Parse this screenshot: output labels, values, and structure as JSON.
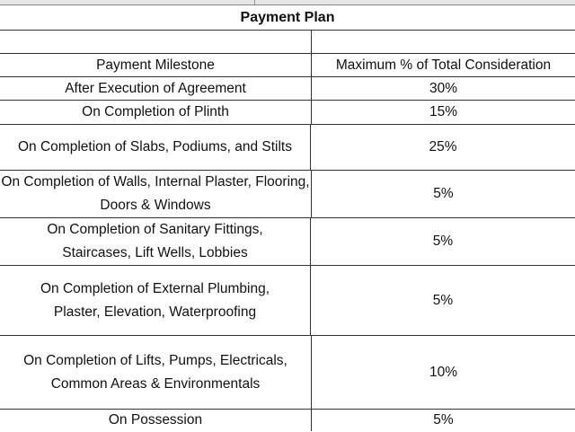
{
  "title": "Payment Plan",
  "headers": {
    "milestone": "Payment Milestone",
    "percent": "Maximum % of Total Consideration"
  },
  "rows": [
    {
      "milestone": "After Execution of Agreement",
      "percent": "30%"
    },
    {
      "milestone": "On Completion of Plinth",
      "percent": "15%"
    },
    {
      "milestone": "On Completion of Slabs, Podiums, and Stilts",
      "percent": "25%"
    },
    {
      "milestone": "On Completion of Walls, Internal Plaster, Flooring, Doors & Windows",
      "percent": "5%"
    },
    {
      "milestone": "On Completion of Sanitary Fittings, Staircases, Lift Wells, Lobbies",
      "percent": "5%"
    },
    {
      "milestone": "On Completion of External Plumbing, Plaster, Elevation, Waterproofing",
      "percent": "5%"
    },
    {
      "milestone": "On Completion of Lifts, Pumps, Electricals, Common Areas & Environmentals",
      "percent": "10%"
    },
    {
      "milestone": "On Possession",
      "percent": "5%"
    }
  ]
}
